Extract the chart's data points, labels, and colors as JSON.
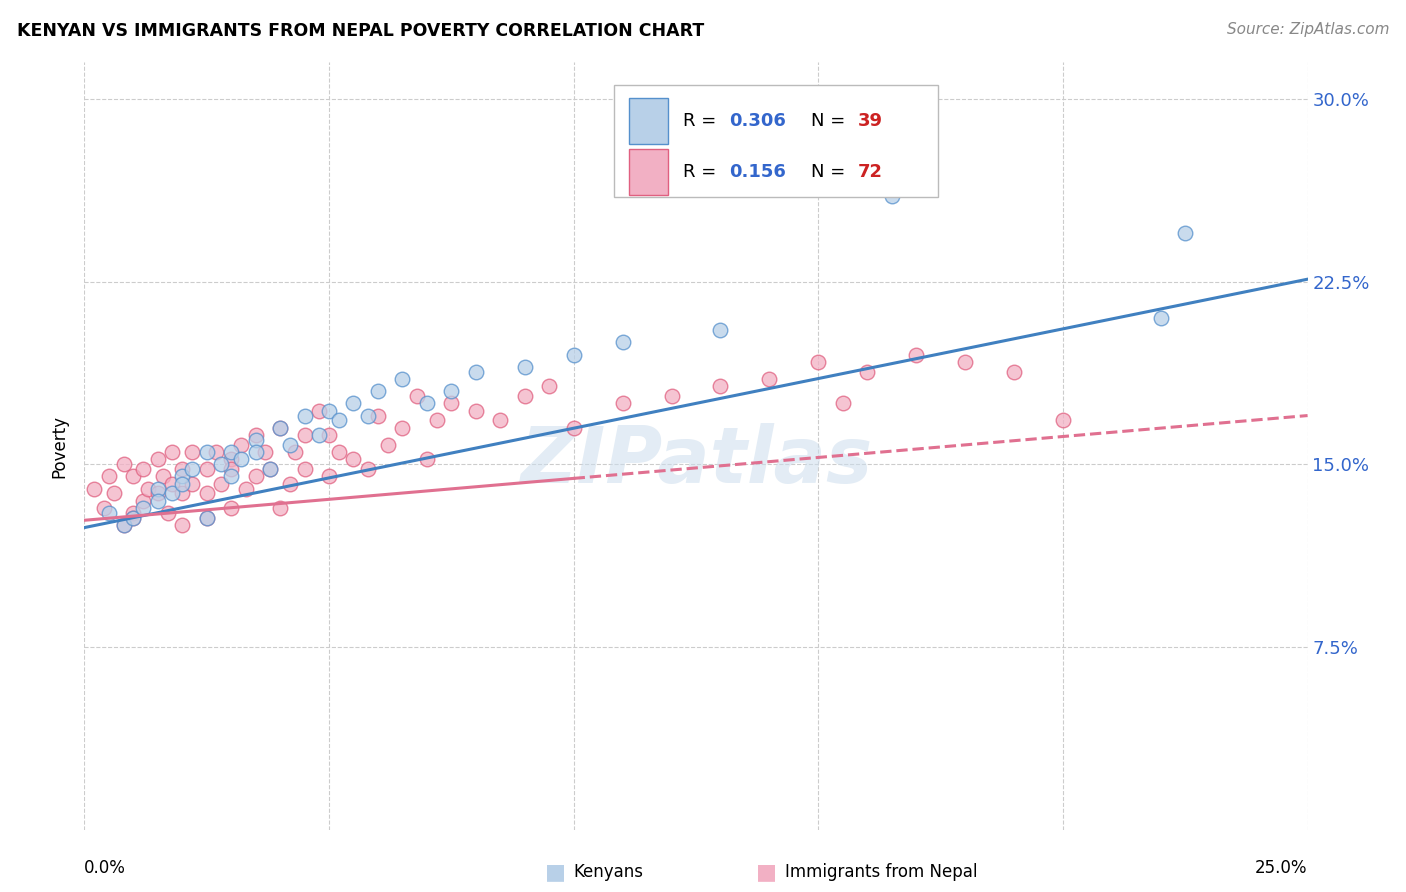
{
  "title": "KENYAN VS IMMIGRANTS FROM NEPAL POVERTY CORRELATION CHART",
  "source": "Source: ZipAtlas.com",
  "ylabel": "Poverty",
  "ytick_labels": [
    "7.5%",
    "15.0%",
    "22.5%",
    "30.0%"
  ],
  "ytick_values": [
    0.075,
    0.15,
    0.225,
    0.3
  ],
  "xtick_values": [
    0.0,
    0.05,
    0.1,
    0.15,
    0.2,
    0.25
  ],
  "xlim": [
    0.0,
    0.25
  ],
  "ylim": [
    0.0,
    0.315
  ],
  "R_kenyan": 0.306,
  "N_kenyan": 39,
  "R_nepal": 0.156,
  "N_nepal": 72,
  "legend_label_1": "Kenyans",
  "legend_label_2": "Immigrants from Nepal",
  "kenyan_fill": "#b8d0e8",
  "nepal_fill": "#f2b0c4",
  "kenyan_edge": "#5590cc",
  "nepal_edge": "#e06080",
  "kenyan_line": "#4080c0",
  "nepal_line": "#e07090",
  "watermark": "ZIPatlas",
  "kenyan_x": [
    0.005,
    0.008,
    0.01,
    0.012,
    0.015,
    0.015,
    0.018,
    0.02,
    0.02,
    0.022,
    0.025,
    0.025,
    0.028,
    0.03,
    0.03,
    0.032,
    0.035,
    0.035,
    0.038,
    0.04,
    0.042,
    0.045,
    0.048,
    0.05,
    0.052,
    0.055,
    0.058,
    0.06,
    0.065,
    0.07,
    0.075,
    0.08,
    0.09,
    0.1,
    0.11,
    0.13,
    0.165,
    0.22,
    0.225
  ],
  "kenyan_y": [
    0.13,
    0.125,
    0.128,
    0.132,
    0.14,
    0.135,
    0.138,
    0.145,
    0.142,
    0.148,
    0.155,
    0.128,
    0.15,
    0.155,
    0.145,
    0.152,
    0.16,
    0.155,
    0.148,
    0.165,
    0.158,
    0.17,
    0.162,
    0.172,
    0.168,
    0.175,
    0.17,
    0.18,
    0.185,
    0.175,
    0.18,
    0.188,
    0.19,
    0.195,
    0.2,
    0.205,
    0.26,
    0.21,
    0.245
  ],
  "nepal_x": [
    0.002,
    0.004,
    0.005,
    0.006,
    0.008,
    0.008,
    0.01,
    0.01,
    0.01,
    0.012,
    0.012,
    0.013,
    0.015,
    0.015,
    0.016,
    0.017,
    0.018,
    0.018,
    0.02,
    0.02,
    0.02,
    0.022,
    0.022,
    0.025,
    0.025,
    0.025,
    0.027,
    0.028,
    0.03,
    0.03,
    0.03,
    0.032,
    0.033,
    0.035,
    0.035,
    0.037,
    0.038,
    0.04,
    0.04,
    0.042,
    0.043,
    0.045,
    0.045,
    0.048,
    0.05,
    0.05,
    0.052,
    0.055,
    0.058,
    0.06,
    0.062,
    0.065,
    0.068,
    0.07,
    0.072,
    0.075,
    0.08,
    0.085,
    0.09,
    0.095,
    0.1,
    0.11,
    0.12,
    0.13,
    0.14,
    0.15,
    0.155,
    0.16,
    0.17,
    0.18,
    0.19,
    0.2
  ],
  "nepal_y": [
    0.14,
    0.132,
    0.145,
    0.138,
    0.125,
    0.15,
    0.13,
    0.145,
    0.128,
    0.135,
    0.148,
    0.14,
    0.138,
    0.152,
    0.145,
    0.13,
    0.142,
    0.155,
    0.125,
    0.148,
    0.138,
    0.142,
    0.155,
    0.128,
    0.148,
    0.138,
    0.155,
    0.142,
    0.132,
    0.152,
    0.148,
    0.158,
    0.14,
    0.145,
    0.162,
    0.155,
    0.148,
    0.132,
    0.165,
    0.142,
    0.155,
    0.162,
    0.148,
    0.172,
    0.145,
    0.162,
    0.155,
    0.152,
    0.148,
    0.17,
    0.158,
    0.165,
    0.178,
    0.152,
    0.168,
    0.175,
    0.172,
    0.168,
    0.178,
    0.182,
    0.165,
    0.175,
    0.178,
    0.182,
    0.185,
    0.192,
    0.175,
    0.188,
    0.195,
    0.192,
    0.188,
    0.168
  ],
  "kenyan_line_x0": 0.0,
  "kenyan_line_y0": 0.124,
  "kenyan_line_x1": 0.25,
  "kenyan_line_y1": 0.226,
  "nepal_line_x0": 0.0,
  "nepal_line_y0": 0.127,
  "nepal_line_x1": 0.25,
  "nepal_line_y1": 0.17
}
